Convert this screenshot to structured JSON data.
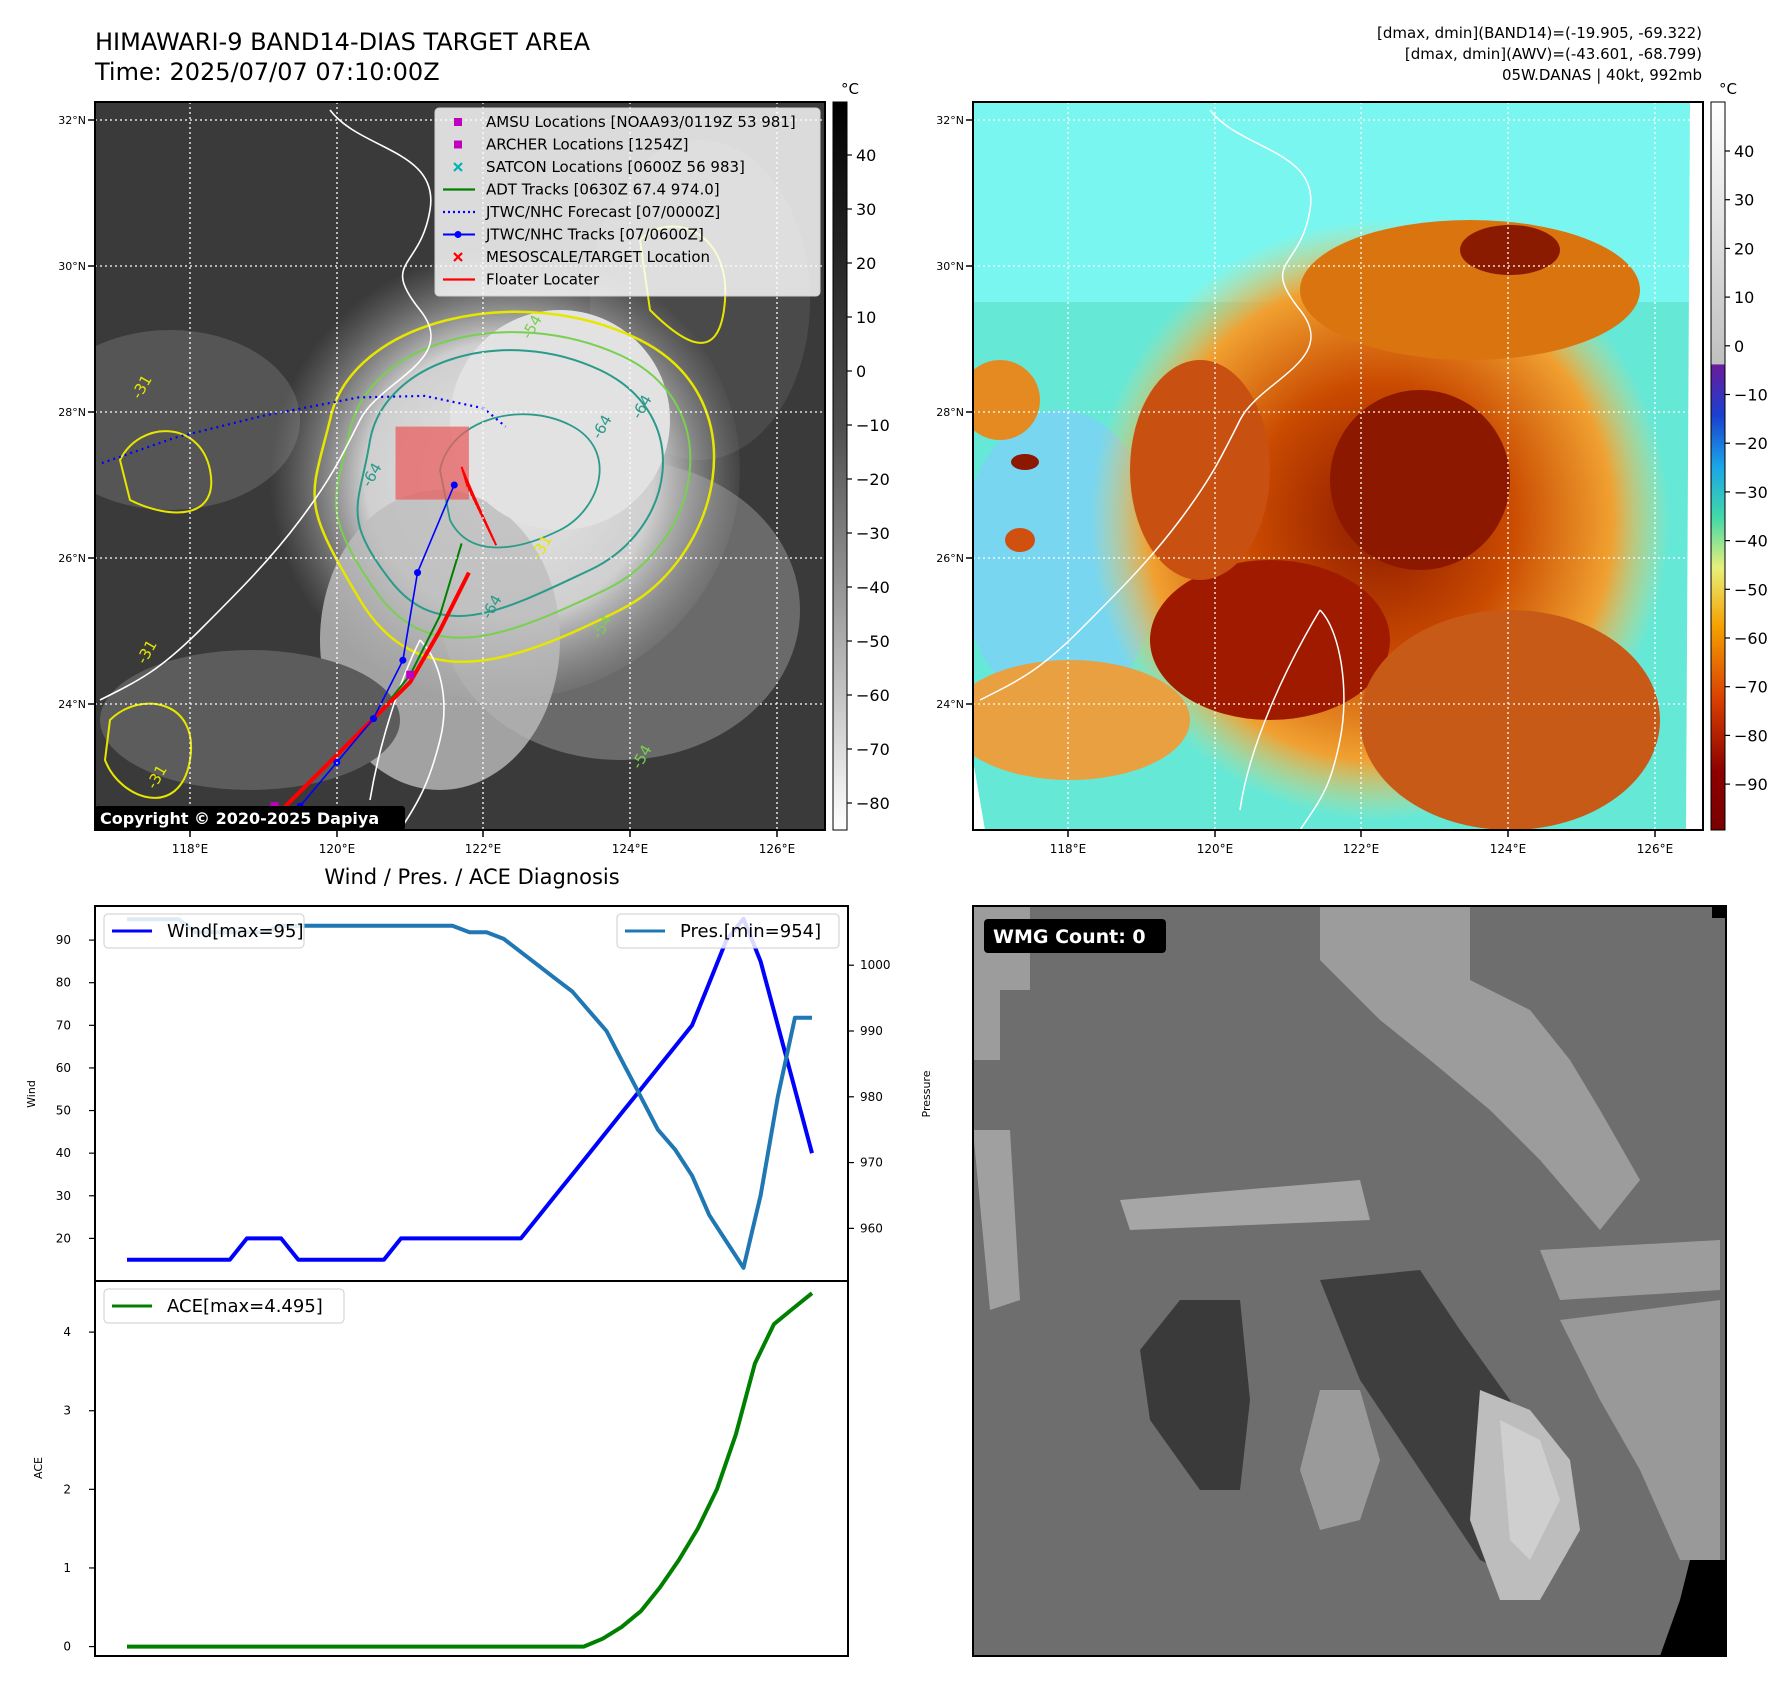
{
  "header": {
    "title_line1": "HIMAWARI-9 BAND14-DIAS TARGET AREA",
    "title_line2": "Time: 2025/07/07 07:10:00Z",
    "stats_line1": "[dmax, dmin](BAND14)=(-19.905, -69.322)",
    "stats_line2": "[dmax, dmin](AWV)=(-43.601, -68.799)",
    "stats_line3": "05W.DANAS | 40kt, 992mb"
  },
  "map_axes": {
    "lon_ticks": [
      "118°E",
      "120°E",
      "122°E",
      "124°E",
      "126°E"
    ],
    "lat_ticks": [
      "32°N",
      "30°N",
      "28°N",
      "26°N",
      "24°N"
    ]
  },
  "ir_map": {
    "copyright": "Copyright © 2020-2025 Dapiya",
    "contour_labels": [
      "-64",
      "-64",
      "-64",
      "-64",
      "-54",
      "-54",
      "-54",
      "-31",
      "-31",
      "-31",
      "-31"
    ],
    "colorbar": {
      "unit": "°C",
      "ticks": [
        "40",
        "30",
        "20",
        "10",
        "0",
        "−10",
        "−20",
        "−30",
        "−40",
        "−50",
        "−60",
        "−70",
        "−80"
      ]
    },
    "legend": [
      {
        "label": "AMSU Locations [NOAA93/0119Z 53 981]",
        "marker": "square",
        "color": "#c000c0"
      },
      {
        "label": "ARCHER Locations [1254Z]",
        "marker": "square",
        "color": "#c000c0"
      },
      {
        "label": "SATCON Locations [0600Z 56 983]",
        "marker": "x",
        "color": "#00b5b5"
      },
      {
        "label": "ADT Tracks [0630Z 67.4 974.0]",
        "marker": "line",
        "color": "#008000"
      },
      {
        "label": "JTWC/NHC Forecast [07/0000Z]",
        "marker": "dotted",
        "color": "#0000ff"
      },
      {
        "label": "JTWC/NHC Tracks [07/0600Z]",
        "marker": "line-dot",
        "color": "#0000ff"
      },
      {
        "label": "MESOSCALE/TARGET Location",
        "marker": "x",
        "color": "#ff0000"
      },
      {
        "label": "Floater Locater",
        "marker": "line",
        "color": "#ff0000"
      }
    ],
    "tracks": {
      "jtwc_forecast": [
        [
          116.8,
          27.3
        ],
        [
          117.8,
          27.65
        ],
        [
          119,
          27.95
        ],
        [
          120.3,
          28.2
        ],
        [
          121.2,
          28.22
        ],
        [
          122,
          28.05
        ],
        [
          122.3,
          27.8
        ]
      ],
      "jtwc_tracks": [
        [
          119.2,
          22.4
        ],
        [
          119.5,
          22.6
        ],
        [
          120.0,
          23.2
        ],
        [
          120.5,
          23.8
        ],
        [
          120.9,
          24.6
        ],
        [
          121.1,
          25.8
        ],
        [
          121.6,
          27.0
        ]
      ],
      "adt_tracks": [
        [
          120.6,
          23.9
        ],
        [
          121.0,
          24.4
        ],
        [
          121.4,
          25.2
        ],
        [
          121.7,
          26.2
        ]
      ],
      "floater": [
        [
          119.1,
          22.4
        ],
        [
          119.8,
          23.1
        ],
        [
          120.5,
          23.8
        ],
        [
          121.0,
          24.3
        ],
        [
          121.4,
          25.0
        ],
        [
          121.8,
          25.8
        ]
      ],
      "amsu": [
        [
          121.0,
          24.4
        ],
        [
          119.15,
          22.6
        ]
      ]
    },
    "target_box": {
      "lon_min": 120.8,
      "lon_max": 121.8,
      "lat_min": 26.8,
      "lat_max": 27.8
    }
  },
  "awv_map": {
    "colorbar": {
      "unit": "°C",
      "ticks": [
        "40",
        "30",
        "20",
        "10",
        "0",
        "−10",
        "−20",
        "−30",
        "−40",
        "−50",
        "−60",
        "−70",
        "−80",
        "−90"
      ]
    }
  },
  "diagnosis": {
    "title": "Wind / Pres. / ACE Diagnosis",
    "wmg_label": "WMG Count: 0"
  },
  "chart_data": [
    {
      "type": "line",
      "title": "Wind / Pres. / ACE Diagnosis",
      "ylabel": "Wind",
      "y2label": "Pressure",
      "ylim": [
        10,
        98
      ],
      "y2lim": [
        952,
        1009
      ],
      "yticks": [
        20,
        30,
        40,
        50,
        60,
        70,
        80,
        90
      ],
      "y2ticks": [
        960,
        970,
        980,
        990,
        1000
      ],
      "x": [
        0,
        1,
        2,
        3,
        4,
        5,
        6,
        7,
        8,
        9,
        10,
        11,
        12,
        13,
        14,
        15,
        16,
        17,
        18,
        19,
        20,
        21,
        22,
        23,
        24,
        25,
        26,
        27,
        28,
        29,
        30,
        31,
        32,
        33,
        34,
        35,
        36,
        37,
        38,
        39,
        40
      ],
      "series": [
        {
          "name": "Wind[max=95]",
          "axis": "left",
          "color": "#0000ff",
          "values": [
            15,
            15,
            15,
            15,
            15,
            15,
            15,
            20,
            20,
            20,
            15,
            15,
            15,
            15,
            15,
            15,
            20,
            20,
            20,
            20,
            20,
            20,
            20,
            20,
            25,
            30,
            35,
            40,
            45,
            50,
            55,
            60,
            65,
            70,
            80,
            90,
            95,
            85,
            70,
            55,
            40
          ]
        },
        {
          "name": "Pres.[min=954]",
          "axis": "right",
          "color": "#1f77b4",
          "values": [
            1007,
            1007,
            1007,
            1007,
            1005,
            1005,
            1005,
            1005,
            1005,
            1006,
            1006,
            1006,
            1006,
            1006,
            1006,
            1006,
            1006,
            1006,
            1006,
            1006,
            1005,
            1005,
            1004,
            1002,
            1000,
            998,
            996,
            993,
            990,
            985,
            980,
            975,
            972,
            968,
            962,
            958,
            954,
            965,
            980,
            992,
            992
          ]
        }
      ],
      "legend_placement": "top"
    },
    {
      "type": "line",
      "ylabel": "ACE",
      "ylim": [
        -0.12,
        4.65
      ],
      "yticks": [
        0,
        1,
        2,
        3,
        4
      ],
      "x": [
        0,
        1,
        2,
        3,
        4,
        5,
        6,
        7,
        8,
        9,
        10,
        11,
        12,
        13,
        14,
        15,
        16,
        17,
        18,
        19,
        20,
        21,
        22,
        23,
        24,
        25,
        26,
        27,
        28,
        29,
        30,
        31,
        32,
        33,
        34,
        35,
        36
      ],
      "series": [
        {
          "name": "ACE[max=4.495]",
          "color": "#008000",
          "values": [
            0,
            0,
            0,
            0,
            0,
            0,
            0,
            0,
            0,
            0,
            0,
            0,
            0,
            0,
            0,
            0,
            0,
            0,
            0,
            0,
            0,
            0,
            0,
            0,
            0,
            0.1,
            0.25,
            0.45,
            0.75,
            1.1,
            1.5,
            2.0,
            2.7,
            3.6,
            4.1,
            4.3,
            4.495
          ]
        }
      ],
      "legend_placement": "top-left"
    }
  ]
}
